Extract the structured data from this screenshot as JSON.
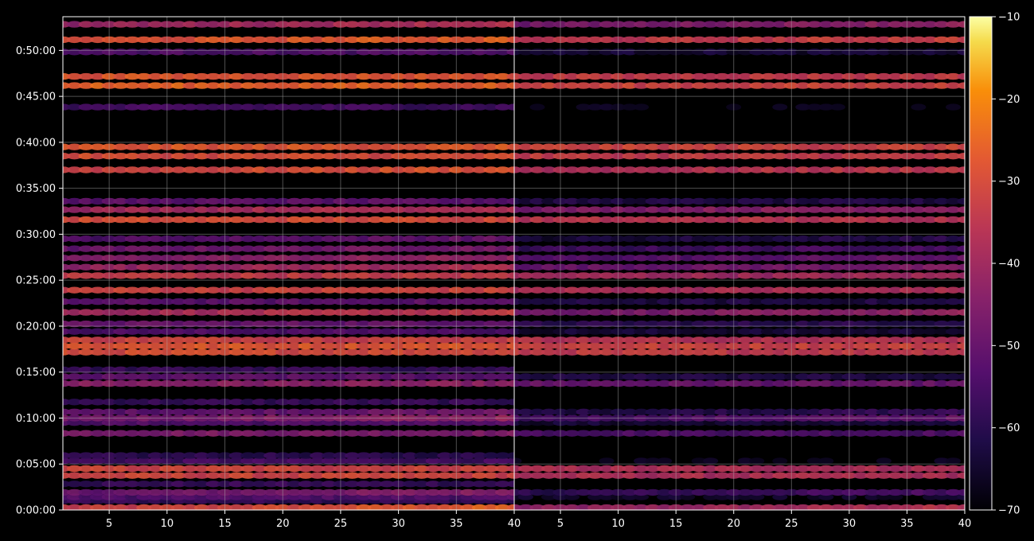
{
  "chart_data": {
    "type": "heatmap",
    "title": "",
    "colormap": "inferno",
    "background": "#000000",
    "grid": true,
    "panels": [
      {
        "x_range": [
          1,
          40
        ],
        "x_ticks": [
          "5",
          "10",
          "15",
          "20",
          "25",
          "30",
          "35",
          "40"
        ],
        "x_tick_values": [
          5,
          10,
          15,
          20,
          25,
          30,
          35,
          40
        ],
        "y_ticks": [
          "0:00:00",
          "0:05:00",
          "0:10:00",
          "0:15:00",
          "0:20:00",
          "0:25:00",
          "0:30:00",
          "0:35:00",
          "0:40:00",
          "0:45:00",
          "0:50:00"
        ],
        "y_tick_seconds": [
          0,
          300,
          600,
          900,
          1200,
          1500,
          1800,
          2100,
          2400,
          2700,
          3000
        ],
        "y_range_seconds": [
          0,
          3220
        ]
      },
      {
        "x_range": [
          1,
          40
        ],
        "x_ticks": [
          "5",
          "10",
          "15",
          "20",
          "25",
          "30",
          "35",
          "40"
        ],
        "x_tick_values": [
          5,
          10,
          15,
          20,
          25,
          30,
          35,
          40
        ],
        "y_range_seconds": [
          0,
          3220
        ]
      }
    ],
    "colorbar": {
      "ticks": [
        "−10",
        "−20",
        "−30",
        "−40",
        "−50",
        "−60",
        "−70"
      ],
      "tick_values": [
        -10,
        -20,
        -30,
        -40,
        -50,
        -60,
        -70
      ],
      "range": [
        -70,
        -10
      ]
    },
    "bands": [
      {
        "t": 15,
        "v": -34,
        "slope": 8,
        "gain2": -10
      },
      {
        "t": 60,
        "v": -58,
        "slope": 0,
        "gain2": -12
      },
      {
        "t": 85,
        "v": -54,
        "slope": 0,
        "gain2": -12
      },
      {
        "t": 115,
        "v": -50,
        "slope": 6,
        "gain2": -10
      },
      {
        "t": 170,
        "v": -58,
        "slope": 0,
        "gain2": -14
      },
      {
        "t": 225,
        "v": -32,
        "slope": 0,
        "gain2": -6
      },
      {
        "t": 270,
        "v": -32,
        "slope": 0,
        "gain2": -6
      },
      {
        "t": 320,
        "v": -56,
        "slope": 0,
        "gain2": -12
      },
      {
        "t": 355,
        "v": -60,
        "slope": 0,
        "gain2": -14
      },
      {
        "t": 500,
        "v": -46,
        "slope": 0,
        "gain2": -8
      },
      {
        "t": 570,
        "v": -54,
        "slope": 0,
        "gain2": -10
      },
      {
        "t": 600,
        "v": -48,
        "slope": 6,
        "gain2": -8
      },
      {
        "t": 640,
        "v": -52,
        "slope": 4,
        "gain2": -10
      },
      {
        "t": 705,
        "v": -58,
        "slope": 0,
        "gain2": -12
      },
      {
        "t": 825,
        "v": -44,
        "slope": 0,
        "gain2": -6
      },
      {
        "t": 870,
        "v": -52,
        "slope": 0,
        "gain2": -10
      },
      {
        "t": 915,
        "v": -58,
        "slope": 0,
        "gain2": -12
      },
      {
        "t": 1030,
        "v": -30,
        "slope": 0,
        "gain2": -4
      },
      {
        "t": 1070,
        "v": -28,
        "slope": 0,
        "gain2": -4
      },
      {
        "t": 1110,
        "v": -32,
        "slope": 0,
        "gain2": -4
      },
      {
        "t": 1165,
        "v": -54,
        "slope": 0,
        "gain2": -10
      },
      {
        "t": 1215,
        "v": -50,
        "slope": 0,
        "gain2": -10
      },
      {
        "t": 1290,
        "v": -40,
        "slope": 6,
        "gain2": -8
      },
      {
        "t": 1360,
        "v": -52,
        "slope": 0,
        "gain2": -10
      },
      {
        "t": 1435,
        "v": -32,
        "slope": 0,
        "gain2": -6
      },
      {
        "t": 1530,
        "v": -34,
        "slope": 0,
        "gain2": -6
      },
      {
        "t": 1585,
        "v": -42,
        "slope": 4,
        "gain2": -8
      },
      {
        "t": 1645,
        "v": -46,
        "slope": 4,
        "gain2": -8
      },
      {
        "t": 1705,
        "v": -50,
        "slope": 4,
        "gain2": -8
      },
      {
        "t": 1770,
        "v": -54,
        "slope": 4,
        "gain2": -10
      },
      {
        "t": 1895,
        "v": -30,
        "slope": 0,
        "gain2": -6
      },
      {
        "t": 1960,
        "v": -40,
        "slope": 4,
        "gain2": -6
      },
      {
        "t": 2015,
        "v": -52,
        "slope": 0,
        "gain2": -10
      },
      {
        "t": 2220,
        "v": -32,
        "slope": 4,
        "gain2": -6
      },
      {
        "t": 2310,
        "v": -30,
        "slope": 0,
        "gain2": -4
      },
      {
        "t": 2370,
        "v": -28,
        "slope": 0,
        "gain2": -4
      },
      {
        "t": 2630,
        "v": -56,
        "slope": 0,
        "gain2": -12
      },
      {
        "t": 2770,
        "v": -26,
        "slope": 0,
        "gain2": -6
      },
      {
        "t": 2830,
        "v": -28,
        "slope": 0,
        "gain2": -6
      },
      {
        "t": 2990,
        "v": -54,
        "slope": 0,
        "gain2": -10
      },
      {
        "t": 3070,
        "v": -30,
        "slope": 4,
        "gain2": -6
      },
      {
        "t": 3170,
        "v": -42,
        "slope": 6,
        "gain2": -6
      }
    ]
  }
}
